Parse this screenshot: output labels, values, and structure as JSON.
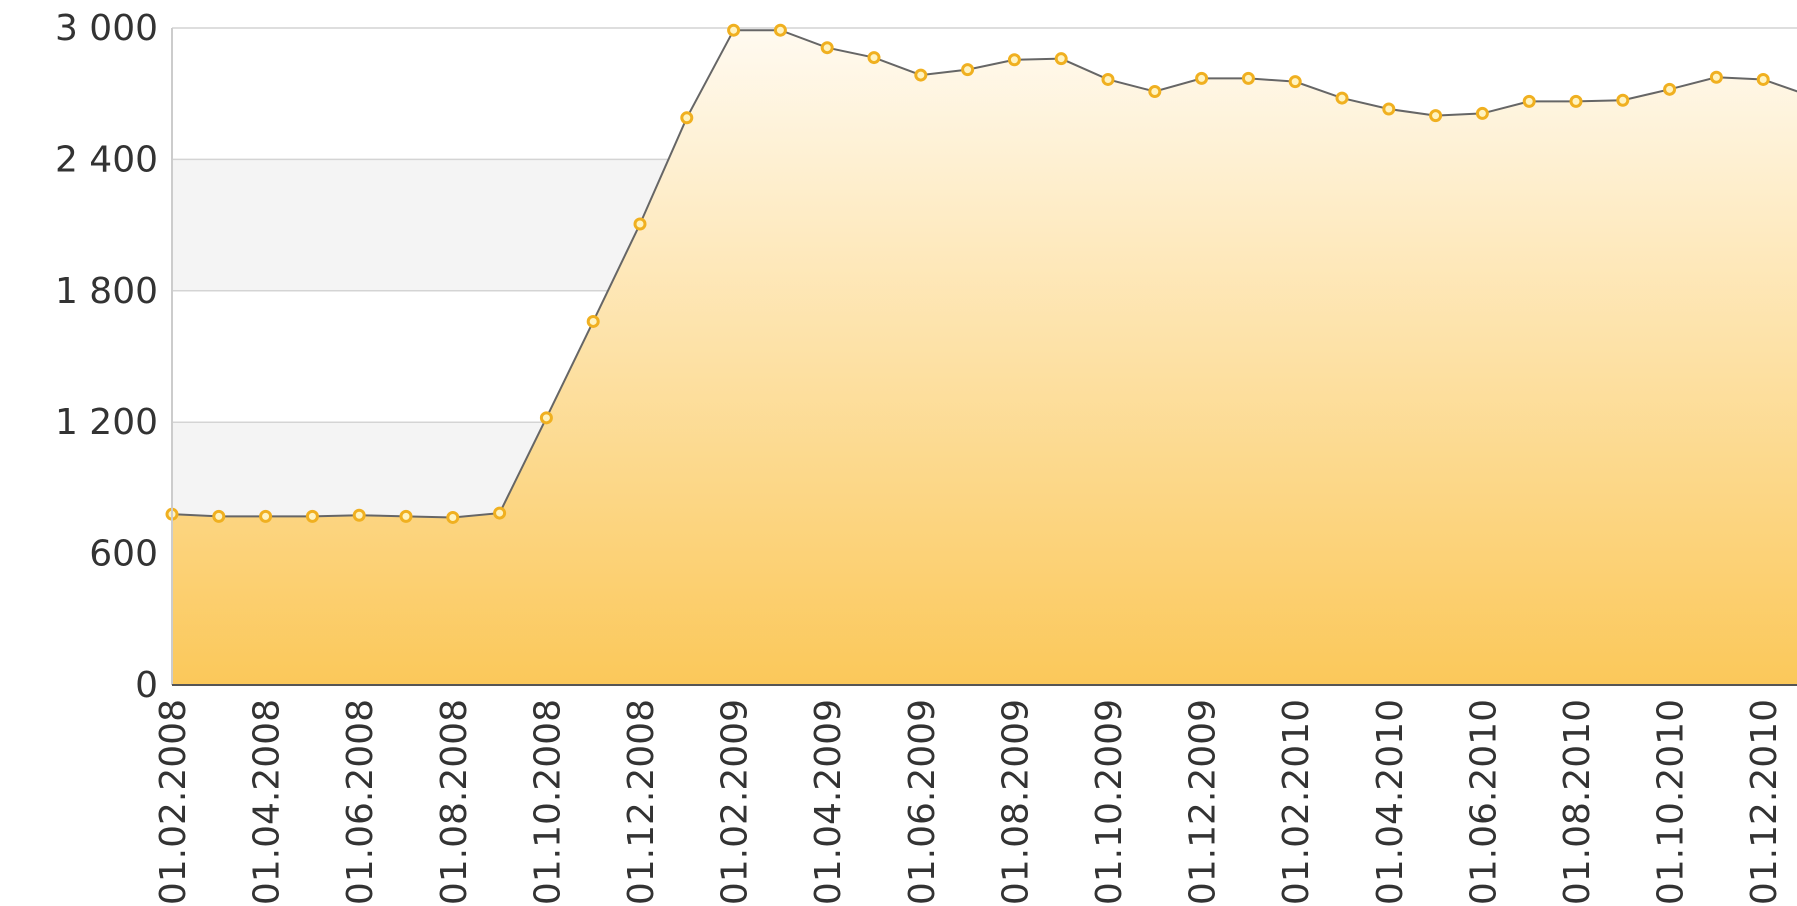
{
  "chart_data": {
    "type": "area",
    "categories": [
      "01.02.2008",
      null,
      "01.04.2008",
      null,
      "01.06.2008",
      null,
      "01.08.2008",
      null,
      "01.10.2008",
      null,
      "01.12.2008",
      null,
      "01.02.2009",
      null,
      "01.04.2009",
      null,
      "01.06.2009",
      null,
      "01.08.2009",
      null,
      "01.10.2009",
      null,
      "01.12.2009",
      null,
      "01.02.2010",
      null,
      "01.04.2010",
      null,
      "01.06.2010",
      null,
      "01.08.2010",
      null,
      "01.10.2010",
      null,
      "01.12.2010",
      null
    ],
    "series": [
      {
        "color": "#f0b020",
        "values": [
          780,
          770,
          770,
          770,
          775,
          770,
          765,
          785,
          1220,
          1660,
          2105,
          2590,
          2990,
          2990,
          2910,
          2865,
          2785,
          2810,
          2855,
          2860,
          2765,
          2710,
          2770,
          2770,
          2755,
          2680,
          2630,
          2600,
          2610,
          2665,
          2665,
          2670,
          2720,
          2775,
          2765,
          2690
        ]
      }
    ],
    "ylim": [
      0,
      3000
    ],
    "yticks": [
      0,
      600,
      {
        "value": 1200,
        "label": "1 200"
      },
      {
        "value": 1800,
        "label": "1 800"
      },
      {
        "value": 2400,
        "label": "2 400"
      },
      {
        "value": 3000,
        "label": "3 000"
      }
    ],
    "grid": true
  }
}
